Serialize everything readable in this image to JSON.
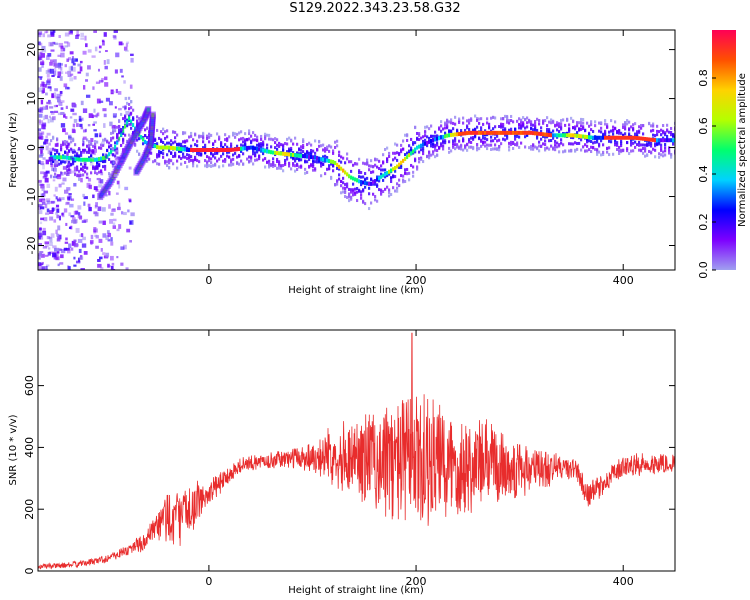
{
  "title": "S129.2022.343.23.58.G32",
  "chart_data": [
    {
      "type": "heatmap",
      "xlabel": "Height of straight line (km)",
      "ylabel": "Frequency (Hz)",
      "xlim": [
        -165,
        450
      ],
      "ylim": [
        -25,
        24
      ],
      "xticks": [
        0,
        200,
        400
      ],
      "yticks": [
        -20,
        -10,
        0,
        10,
        20
      ],
      "ridge": {
        "x": [
          -140,
          -125,
          -110,
          -100,
          -92,
          -85,
          -78,
          -70,
          -62,
          -55,
          -50,
          -40,
          -20,
          0,
          20,
          40,
          60,
          80,
          100,
          120,
          135,
          145,
          155,
          165,
          180,
          200,
          215,
          230,
          250,
          270,
          290,
          310,
          330,
          350,
          370,
          390,
          410,
          430,
          450
        ],
        "y": [
          -2,
          -2.5,
          -2.5,
          -2,
          0,
          3,
          6,
          3,
          1,
          0.5,
          0,
          0,
          -0.5,
          -0.5,
          -0.5,
          0,
          -1,
          -1.5,
          -2,
          -3,
          -6,
          -7,
          -7.5,
          -6,
          -4,
          0,
          1.5,
          2.5,
          3,
          3,
          3,
          3,
          2.5,
          2.5,
          2,
          2,
          2,
          1.5,
          1.5
        ]
      },
      "colorbar": {
        "label": "Normalized spectral amplitude",
        "range": [
          0,
          1
        ],
        "ticks": [
          "0.0",
          "0.2",
          "0.4",
          "0.6",
          "0.8"
        ],
        "colormap": [
          "#a0a0f0",
          "#7d00ff",
          "#0000ff",
          "#00d2ff",
          "#00ff6e",
          "#b4ff00",
          "#ffd200",
          "#ff5000",
          "#ff0055"
        ]
      }
    },
    {
      "type": "line",
      "xlabel": "Height of straight line (km)",
      "ylabel": "SNR (10 * v/v)",
      "xlim": [
        -165,
        450
      ],
      "ylim": [
        0,
        780
      ],
      "xticks": [
        0,
        200,
        400
      ],
      "yticks": [
        0,
        200,
        400,
        600
      ],
      "color": "#e82c2c",
      "envelope": {
        "x": [
          -165,
          -140,
          -120,
          -100,
          -80,
          -60,
          -50,
          -40,
          -30,
          -15,
          0,
          15,
          30,
          50,
          80,
          100,
          120,
          140,
          160,
          180,
          200,
          220,
          240,
          260,
          280,
          300,
          320,
          340,
          355,
          365,
          380,
          400,
          420,
          450
        ],
        "mean": [
          15,
          18,
          25,
          40,
          65,
          100,
          140,
          180,
          170,
          210,
          250,
          300,
          340,
          355,
          365,
          370,
          375,
          370,
          360,
          355,
          350,
          345,
          345,
          345,
          340,
          330,
          330,
          335,
          330,
          240,
          280,
          340,
          345,
          350
        ],
        "amp": [
          10,
          10,
          12,
          15,
          20,
          40,
          60,
          120,
          100,
          80,
          50,
          40,
          30,
          25,
          35,
          60,
          100,
          150,
          190,
          230,
          260,
          230,
          200,
          170,
          140,
          110,
          80,
          50,
          40,
          50,
          40,
          40,
          40,
          40
        ]
      },
      "peak": {
        "x": 196,
        "y": 770
      }
    }
  ]
}
